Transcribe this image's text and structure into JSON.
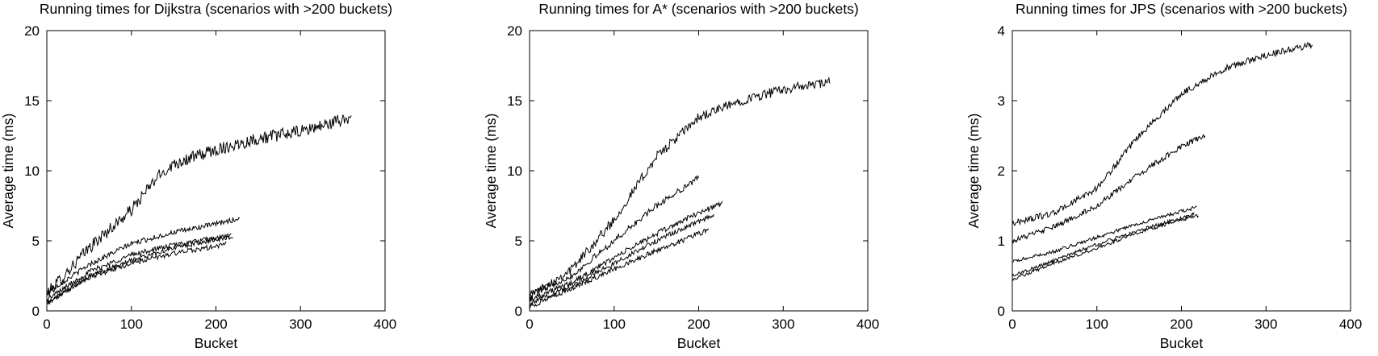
{
  "chart_data": [
    {
      "type": "line",
      "title": "Running times for Dijkstra (scenarios with >200 buckets)",
      "xlabel": "Bucket",
      "ylabel": "Average time (ms)",
      "xlim": [
        0,
        400
      ],
      "ylim": [
        0,
        20
      ],
      "xticks": [
        0,
        100,
        200,
        300,
        400
      ],
      "yticks": [
        0,
        5,
        10,
        15,
        20
      ],
      "grid": false,
      "legend": "none",
      "line_color": "#000000",
      "series": [
        {
          "x": [
            0,
            50,
            100,
            130,
            150,
            200,
            250,
            300,
            360
          ],
          "values": [
            1.2,
            4.5,
            7.2,
            9.5,
            10.5,
            11.5,
            12.3,
            12.8,
            13.8
          ],
          "noise": 0.45
        },
        {
          "x": [
            0,
            50,
            100,
            150,
            200,
            228
          ],
          "values": [
            1.3,
            3.3,
            4.8,
            5.6,
            6.2,
            6.6
          ],
          "noise": 0.18
        },
        {
          "x": [
            0,
            50,
            100,
            150,
            200,
            218
          ],
          "values": [
            0.8,
            2.8,
            4.0,
            4.7,
            5.2,
            5.4
          ],
          "noise": 0.18
        },
        {
          "x": [
            0,
            50,
            100,
            150,
            200,
            220
          ],
          "values": [
            0.5,
            2.5,
            3.6,
            4.5,
            5.1,
            5.3
          ],
          "noise": 0.18
        },
        {
          "x": [
            0,
            50,
            100,
            150,
            200,
            212
          ],
          "values": [
            0.6,
            2.4,
            3.4,
            4.1,
            4.6,
            4.8
          ],
          "noise": 0.18
        }
      ]
    },
    {
      "type": "line",
      "title": "Running times for A* (scenarios with >200 buckets)",
      "xlabel": "Bucket",
      "ylabel": "Average time (ms)",
      "xlim": [
        0,
        400
      ],
      "ylim": [
        0,
        20
      ],
      "xticks": [
        0,
        100,
        200,
        300,
        400
      ],
      "yticks": [
        0,
        5,
        10,
        15,
        20
      ],
      "grid": false,
      "legend": "none",
      "line_color": "#000000",
      "series": [
        {
          "x": [
            0,
            50,
            100,
            150,
            200,
            250,
            300,
            355
          ],
          "values": [
            1.0,
            3.0,
            6.5,
            11.0,
            13.8,
            15.0,
            15.8,
            16.3
          ],
          "noise": 0.35
        },
        {
          "x": [
            0,
            50,
            100,
            150,
            200
          ],
          "values": [
            1.2,
            2.5,
            5.0,
            7.5,
            9.5
          ],
          "noise": 0.22
        },
        {
          "x": [
            0,
            50,
            100,
            150,
            200,
            228
          ],
          "values": [
            0.8,
            2.0,
            3.8,
            5.5,
            7.0,
            7.7
          ],
          "noise": 0.2
        },
        {
          "x": [
            0,
            50,
            100,
            150,
            200,
            218
          ],
          "values": [
            0.5,
            1.8,
            3.4,
            5.0,
            6.4,
            6.8
          ],
          "noise": 0.18
        },
        {
          "x": [
            0,
            50,
            100,
            150,
            200,
            212
          ],
          "values": [
            0.3,
            1.6,
            3.0,
            4.3,
            5.5,
            5.8
          ],
          "noise": 0.18
        }
      ]
    },
    {
      "type": "line",
      "title": "Running times for JPS (scenarios with >200 buckets)",
      "xlabel": "Bucket",
      "ylabel": "Average time (ms)",
      "xlim": [
        0,
        400
      ],
      "ylim": [
        0,
        4
      ],
      "xticks": [
        0,
        100,
        200,
        300,
        400
      ],
      "yticks": [
        0,
        1,
        2,
        3,
        4
      ],
      "grid": false,
      "legend": "none",
      "line_color": "#000000",
      "series": [
        {
          "x": [
            0,
            50,
            100,
            150,
            200,
            250,
            300,
            355
          ],
          "values": [
            1.25,
            1.4,
            1.75,
            2.5,
            3.1,
            3.45,
            3.65,
            3.8
          ],
          "noise": 0.045
        },
        {
          "x": [
            0,
            50,
            100,
            150,
            200,
            228
          ],
          "values": [
            1.0,
            1.2,
            1.5,
            1.95,
            2.35,
            2.5
          ],
          "noise": 0.04
        },
        {
          "x": [
            0,
            50,
            100,
            150,
            200,
            218
          ],
          "values": [
            0.7,
            0.85,
            1.05,
            1.25,
            1.42,
            1.48
          ],
          "noise": 0.025
        },
        {
          "x": [
            0,
            50,
            100,
            150,
            200,
            215
          ],
          "values": [
            0.5,
            0.72,
            0.95,
            1.15,
            1.33,
            1.38
          ],
          "noise": 0.025
        },
        {
          "x": [
            0,
            50,
            100,
            150,
            200,
            220
          ],
          "values": [
            0.45,
            0.68,
            0.9,
            1.12,
            1.3,
            1.36
          ],
          "noise": 0.025
        }
      ]
    }
  ]
}
